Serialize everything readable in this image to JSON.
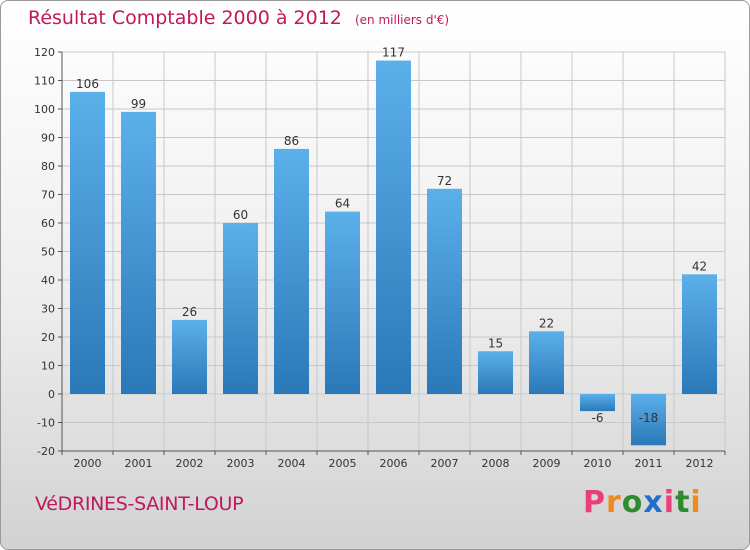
{
  "header": {
    "title": "Résultat Comptable 2000 à 2012",
    "subtitle": "(en milliers d'€)"
  },
  "footer": {
    "commune": "VéDRINES-SAINT-LOUP",
    "brand": "Proxiti",
    "brand_colors": [
      "#e8407a",
      "#f08a1c",
      "#2e8b2e",
      "#1f6fc8",
      "#e8407a",
      "#2e8b2e",
      "#f08a1c"
    ]
  },
  "colors": {
    "bar_top": "#5cb0ea",
    "bar_bottom": "#2a78b8",
    "grid": "#c8c8c8",
    "axis": "#555555",
    "text": "#333333"
  },
  "chart_data": {
    "type": "bar",
    "title": "Résultat Comptable 2000 à 2012",
    "subtitle": "(en milliers d'€)",
    "xlabel": "",
    "ylabel": "",
    "categories": [
      "2000",
      "2001",
      "2002",
      "2003",
      "2004",
      "2005",
      "2006",
      "2007",
      "2008",
      "2009",
      "2010",
      "2011",
      "2012"
    ],
    "values": [
      106,
      99,
      26,
      60,
      86,
      64,
      117,
      72,
      15,
      22,
      -6,
      -18,
      42
    ],
    "value_labels": [
      "106",
      "99",
      "26",
      "60",
      "86",
      "64",
      "117",
      "72",
      "15",
      "22",
      "-6",
      "-18",
      "42"
    ],
    "ylim": [
      -20,
      120
    ],
    "yticks": [
      -20,
      -10,
      0,
      10,
      20,
      30,
      40,
      50,
      60,
      70,
      80,
      90,
      100,
      110,
      120
    ],
    "ytick_labels": [
      "-20",
      "-10",
      "0",
      "10",
      "20",
      "30",
      "40",
      "50",
      "60",
      "70",
      "80",
      "90",
      "100",
      "110",
      "120"
    ],
    "grid": true
  }
}
